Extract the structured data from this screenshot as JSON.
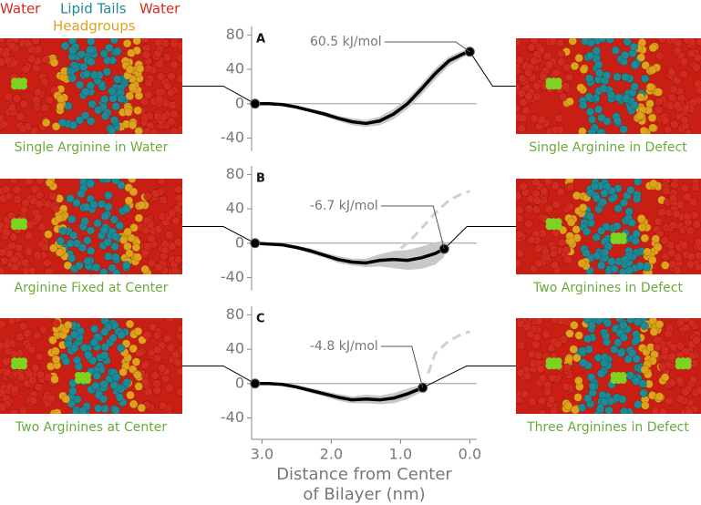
{
  "key": [
    {
      "text": "Water",
      "color": "#d42a1e"
    },
    {
      "text": "Lipid Tails",
      "color": "#1e8a95"
    },
    {
      "text": "Water",
      "color": "#d42a1e"
    },
    {
      "text": "Headgroups",
      "color": "#e0a21a"
    }
  ],
  "chart_data": [
    {
      "type": "line",
      "panel_label": "A",
      "left_caption": "Single Arginine in Water",
      "right_caption": "Single Arginine in Defect",
      "annotation": "60.5 kJ/mol",
      "xlim": [
        3.15,
        -0.1
      ],
      "ylim": [
        -55,
        90
      ],
      "yticks": [
        -40,
        0,
        40,
        80
      ],
      "curve": {
        "x": [
          3.1,
          2.9,
          2.7,
          2.5,
          2.3,
          2.1,
          1.9,
          1.7,
          1.5,
          1.3,
          1.1,
          0.9,
          0.7,
          0.5,
          0.3,
          0.1,
          0.0
        ],
        "y": [
          0,
          0,
          -1,
          -4,
          -8,
          -12,
          -17,
          -21,
          -23,
          -20,
          -12,
          0,
          17,
          35,
          50,
          58,
          60.5
        ],
        "lower": [
          0,
          -1,
          -2,
          -6,
          -10,
          -15,
          -20,
          -25,
          -27,
          -25,
          -18,
          -6,
          10,
          28,
          44,
          54,
          58
        ],
        "upper": [
          0,
          1,
          0,
          -2,
          -6,
          -9,
          -14,
          -17,
          -19,
          -15,
          -6,
          6,
          23,
          41,
          55,
          62,
          63
        ]
      },
      "points": {
        "x": [
          3.1,
          0.0
        ],
        "y": [
          0,
          60.5
        ]
      }
    },
    {
      "type": "line",
      "panel_label": "B",
      "left_caption": "Arginine Fixed at Center",
      "right_caption": "Two Arginines in Defect",
      "annotation": "-6.7 kJ/mol",
      "xlim": [
        3.15,
        -0.1
      ],
      "ylim": [
        -55,
        90
      ],
      "yticks": [
        -40,
        0,
        40,
        80
      ],
      "curve": {
        "x": [
          3.1,
          2.9,
          2.7,
          2.5,
          2.3,
          2.1,
          1.9,
          1.7,
          1.5,
          1.3,
          1.1,
          0.9,
          0.7,
          0.5,
          0.37
        ],
        "y": [
          0,
          -1,
          -2,
          -5,
          -9,
          -14,
          -19,
          -22,
          -23,
          -20,
          -19,
          -20,
          -17,
          -12,
          -6.7
        ],
        "lower": [
          0,
          -2,
          -4,
          -7,
          -12,
          -17,
          -23,
          -26,
          -28,
          -27,
          -29,
          -31,
          -30,
          -25,
          -16
        ],
        "upper": [
          0,
          0,
          0,
          -3,
          -6,
          -11,
          -15,
          -18,
          -18,
          -13,
          -9,
          -8,
          -4,
          1,
          3
        ]
      },
      "reference": {
        "x": [
          1.0,
          0.9,
          0.7,
          0.5,
          0.3,
          0.1,
          0.0
        ],
        "y": [
          -6,
          0,
          17,
          35,
          50,
          58,
          60.5
        ]
      },
      "points": {
        "x": [
          3.1,
          0.37
        ],
        "y": [
          0,
          -6.7
        ]
      }
    },
    {
      "type": "line",
      "panel_label": "C",
      "left_caption": "Two Arginines at Center",
      "right_caption": "Three Arginines in Defect",
      "annotation": "-4.8 kJ/mol",
      "xlim": [
        3.15,
        -0.1
      ],
      "ylim": [
        -65,
        90
      ],
      "yticks": [
        -40,
        0,
        40,
        80
      ],
      "xticks": [
        {
          "value": 3.0,
          "label": "3.0"
        },
        {
          "value": 2.0,
          "label": "2.0"
        },
        {
          "value": 1.0,
          "label": "1.0"
        },
        {
          "value": 0.0,
          "label": "0.0"
        }
      ],
      "xlabel": "Distance from Center of Bilayer (nm)",
      "curve": {
        "x": [
          3.1,
          2.9,
          2.7,
          2.5,
          2.3,
          2.1,
          1.9,
          1.7,
          1.5,
          1.3,
          1.1,
          0.9,
          0.68
        ],
        "y": [
          0,
          0,
          -1,
          -4,
          -8,
          -12,
          -16,
          -19,
          -18,
          -19,
          -17,
          -12,
          -4.8
        ],
        "lower": [
          0,
          -1,
          -3,
          -6,
          -11,
          -15,
          -20,
          -23,
          -23,
          -24,
          -23,
          -18,
          -9
        ],
        "upper": [
          0,
          1,
          1,
          -2,
          -5,
          -9,
          -12,
          -15,
          -13,
          -14,
          -11,
          -6,
          -1
        ]
      },
      "reference": {
        "x": [
          0.6,
          0.5,
          0.3,
          0.1,
          0.0
        ],
        "y": [
          12,
          35,
          50,
          58,
          60.5
        ]
      },
      "points": {
        "x": [
          3.1,
          0.68
        ],
        "y": [
          0,
          -4.8
        ]
      }
    }
  ]
}
